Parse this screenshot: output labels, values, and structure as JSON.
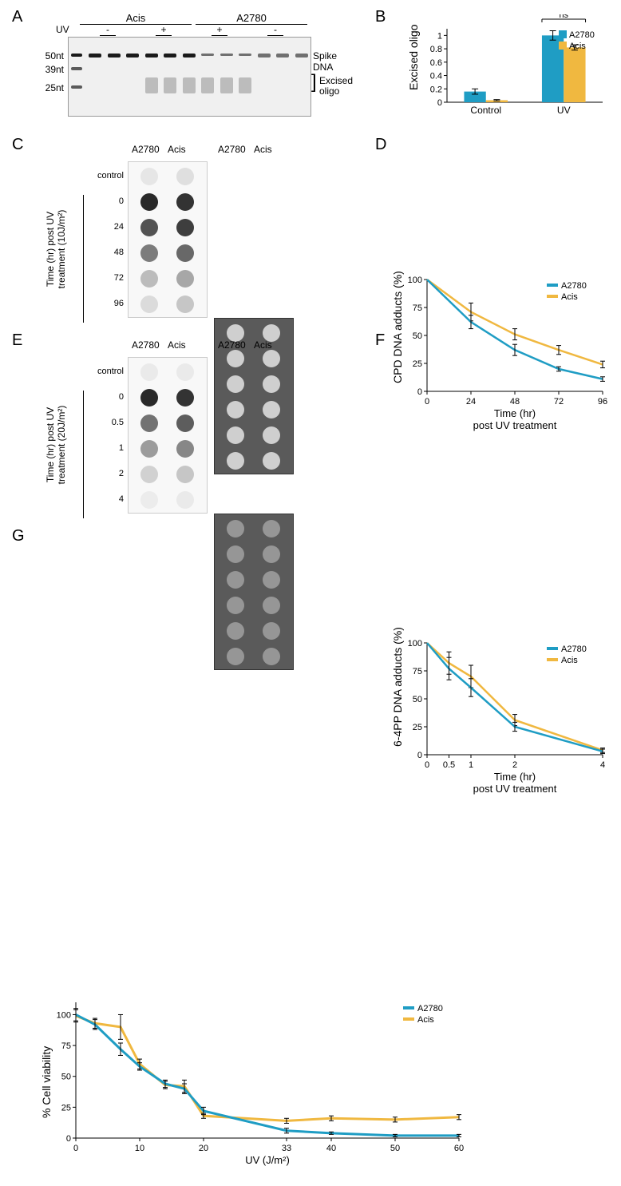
{
  "colors": {
    "a2780": "#1f9dc4",
    "acis": "#f0b840",
    "axis": "#000000",
    "grid": "#cccccc",
    "bg": "#ffffff",
    "dark_dot": "#2a2a2a",
    "light_dot": "#e8e8e8"
  },
  "panelA": {
    "label": "A",
    "header_groups": [
      "Acis",
      "A2780"
    ],
    "uv_row_label": "UV",
    "uv_conditions": [
      "-",
      "+",
      "+",
      "-"
    ],
    "markers": [
      "50nt",
      "39nt",
      "25nt"
    ],
    "right_labels": [
      "Spike DNA",
      "Excised oligo"
    ],
    "lanes": 12
  },
  "panelB": {
    "label": "B",
    "ylabel": "Excised oligo",
    "categories": [
      "Control",
      "UV"
    ],
    "legend": [
      "A2780",
      "Acis"
    ],
    "ns": "ns",
    "ylim": [
      0,
      1.1
    ],
    "yticks": [
      0,
      0.2,
      0.4,
      0.6,
      0.8,
      1
    ],
    "data": {
      "Control": {
        "A2780": {
          "v": 0.16,
          "err": 0.04
        },
        "Acis": {
          "v": 0.03,
          "err": 0.01
        }
      },
      "UV": {
        "A2780": {
          "v": 1.0,
          "err": 0.07
        },
        "Acis": {
          "v": 0.82,
          "err": 0.04
        }
      }
    },
    "bar_width": 0.35
  },
  "panelC": {
    "label": "C",
    "col_labels": [
      "A2780",
      "Acis"
    ],
    "row_labels": [
      "control",
      "0",
      "24",
      "48",
      "72",
      "96"
    ],
    "side_label": "Time (hr) post UV\ntreatment (10J/m²)",
    "intensities": {
      "light_panel": [
        [
          0.05,
          0.08
        ],
        [
          0.95,
          0.9
        ],
        [
          0.75,
          0.85
        ],
        [
          0.55,
          0.65
        ],
        [
          0.25,
          0.35
        ],
        [
          0.1,
          0.2
        ]
      ],
      "dark_panel_uniform": 0.9
    }
  },
  "panelD": {
    "label": "D",
    "ylabel": "CPD DNA adducts (%)",
    "xlabel": "Time (hr)\npost UV treatment",
    "xlim": [
      0,
      96
    ],
    "ylim": [
      0,
      100
    ],
    "xticks": [
      0,
      24,
      48,
      72,
      96
    ],
    "yticks": [
      0,
      25,
      50,
      75,
      100
    ],
    "legend": [
      "A2780",
      "Acis"
    ],
    "series": {
      "A2780": [
        {
          "x": 0,
          "y": 100,
          "e": 0
        },
        {
          "x": 24,
          "y": 62,
          "e": 6
        },
        {
          "x": 48,
          "y": 37,
          "e": 5
        },
        {
          "x": 72,
          "y": 20,
          "e": 2
        },
        {
          "x": 96,
          "y": 11,
          "e": 2
        }
      ],
      "Acis": [
        {
          "x": 0,
          "y": 100,
          "e": 0
        },
        {
          "x": 24,
          "y": 71,
          "e": 8
        },
        {
          "x": 48,
          "y": 51,
          "e": 5
        },
        {
          "x": 72,
          "y": 37,
          "e": 4
        },
        {
          "x": 96,
          "y": 24,
          "e": 3
        }
      ]
    },
    "line_width": 2.5
  },
  "panelE": {
    "label": "E",
    "col_labels": [
      "A2780",
      "Acis"
    ],
    "row_labels": [
      "control",
      "0",
      "0.5",
      "1",
      "2",
      "4"
    ],
    "side_label": "Time (hr) post UV\ntreatment (20J/m²)",
    "intensities": {
      "light_panel": [
        [
          0.03,
          0.03
        ],
        [
          0.95,
          0.9
        ],
        [
          0.6,
          0.7
        ],
        [
          0.4,
          0.5
        ],
        [
          0.15,
          0.2
        ],
        [
          0.02,
          0.03
        ]
      ],
      "dark_panel_uniform": 0.65
    }
  },
  "panelF": {
    "label": "F",
    "ylabel": "6-4PP DNA adducts (%)",
    "xlabel": "Time (hr)\npost UV treatment",
    "xlim": [
      0,
      4
    ],
    "ylim": [
      0,
      100
    ],
    "xticks": [
      0,
      0.5,
      1,
      2,
      4
    ],
    "yticks": [
      0,
      25,
      50,
      75,
      100
    ],
    "legend": [
      "A2780",
      "Acis"
    ],
    "series": {
      "A2780": [
        {
          "x": 0,
          "y": 100,
          "e": 0
        },
        {
          "x": 0.5,
          "y": 77,
          "e": 10
        },
        {
          "x": 1,
          "y": 60,
          "e": 8
        },
        {
          "x": 2,
          "y": 25,
          "e": 4
        },
        {
          "x": 4,
          "y": 3,
          "e": 2
        }
      ],
      "Acis": [
        {
          "x": 0,
          "y": 100,
          "e": 0
        },
        {
          "x": 0.5,
          "y": 82,
          "e": 10
        },
        {
          "x": 1,
          "y": 70,
          "e": 10
        },
        {
          "x": 2,
          "y": 31,
          "e": 5
        },
        {
          "x": 4,
          "y": 4,
          "e": 2
        }
      ]
    },
    "line_width": 2.5
  },
  "panelG": {
    "label": "G",
    "ylabel": "% Cell viability",
    "xlabel": "UV (J/m²)",
    "xlim": [
      0,
      60
    ],
    "ylim": [
      0,
      110
    ],
    "xticks": [
      0,
      10,
      20,
      33,
      40,
      50,
      60
    ],
    "yticks": [
      0,
      25,
      50,
      75,
      100
    ],
    "legend": [
      "A2780",
      "Acis"
    ],
    "series": {
      "A2780": [
        {
          "x": 0,
          "y": 100,
          "e": 5
        },
        {
          "x": 3,
          "y": 92,
          "e": 4
        },
        {
          "x": 7,
          "y": 72,
          "e": 5
        },
        {
          "x": 10,
          "y": 58,
          "e": 3
        },
        {
          "x": 14,
          "y": 44,
          "e": 3
        },
        {
          "x": 17,
          "y": 40,
          "e": 4
        },
        {
          "x": 20,
          "y": 22,
          "e": 3
        },
        {
          "x": 33,
          "y": 6,
          "e": 2
        },
        {
          "x": 40,
          "y": 4,
          "e": 1
        },
        {
          "x": 50,
          "y": 2,
          "e": 1
        },
        {
          "x": 60,
          "y": 2,
          "e": 1
        }
      ],
      "Acis": [
        {
          "x": 0,
          "y": 99,
          "e": 5
        },
        {
          "x": 3,
          "y": 93,
          "e": 4
        },
        {
          "x": 7,
          "y": 90,
          "e": 10
        },
        {
          "x": 10,
          "y": 60,
          "e": 4
        },
        {
          "x": 14,
          "y": 43,
          "e": 3
        },
        {
          "x": 17,
          "y": 42,
          "e": 5
        },
        {
          "x": 20,
          "y": 18,
          "e": 2
        },
        {
          "x": 33,
          "y": 14,
          "e": 2
        },
        {
          "x": 40,
          "y": 16,
          "e": 2
        },
        {
          "x": 50,
          "y": 15,
          "e": 2
        },
        {
          "x": 60,
          "y": 17,
          "e": 2
        }
      ]
    },
    "line_width": 3
  }
}
